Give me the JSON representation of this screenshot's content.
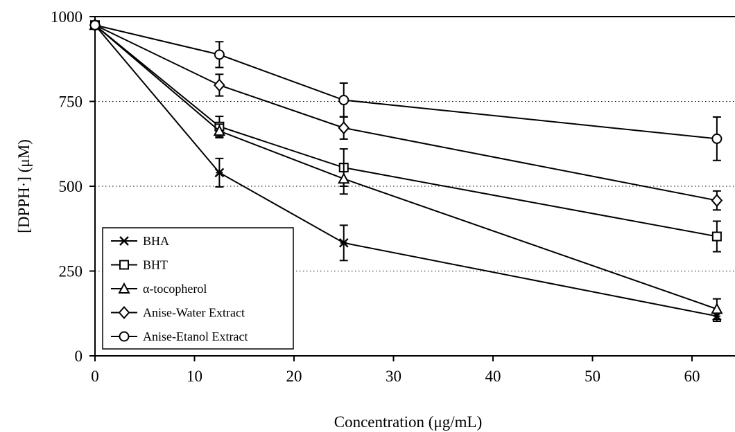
{
  "chart_data": {
    "type": "line",
    "xlabel": "Concentration (μg/mL)",
    "ylabel": "[DPPH·]  (μM)",
    "xlim": [
      0,
      63
    ],
    "ylim": [
      0,
      1000
    ],
    "xticks": [
      0,
      10,
      20,
      30,
      40,
      50,
      60
    ],
    "yticks": [
      0,
      250,
      500,
      750,
      1000
    ],
    "x_tick_labels": [
      "0",
      "10",
      "20",
      "30",
      "40",
      "50",
      "60"
    ],
    "y_tick_labels": [
      "0",
      "250",
      "500",
      "750",
      "1000"
    ],
    "grid": "horizontal dotted at 250, 500, 750",
    "legend_position": "lower-left",
    "x": [
      0,
      12.5,
      25,
      62.5
    ],
    "series": [
      {
        "name": "BHA",
        "marker": "x",
        "values": [
          975,
          540,
          333,
          117
        ],
        "errors": [
          8,
          42,
          52,
          15
        ]
      },
      {
        "name": "BHT",
        "marker": "square",
        "values": [
          975,
          676,
          555,
          352
        ],
        "errors": [
          8,
          30,
          55,
          45
        ]
      },
      {
        "name": "α-tocopherol",
        "marker": "triangle",
        "values": [
          975,
          663,
          522,
          138
        ],
        "errors": [
          8,
          20,
          45,
          30
        ]
      },
      {
        "name": "Anise-Water Extract",
        "marker": "diamond",
        "values": [
          975,
          798,
          672,
          458
        ],
        "errors": [
          8,
          32,
          33,
          28
        ]
      },
      {
        "name": "Anise-Etanol Extract",
        "marker": "circle",
        "values": [
          975,
          888,
          754,
          640
        ],
        "errors": [
          8,
          38,
          50,
          64
        ]
      }
    ]
  }
}
